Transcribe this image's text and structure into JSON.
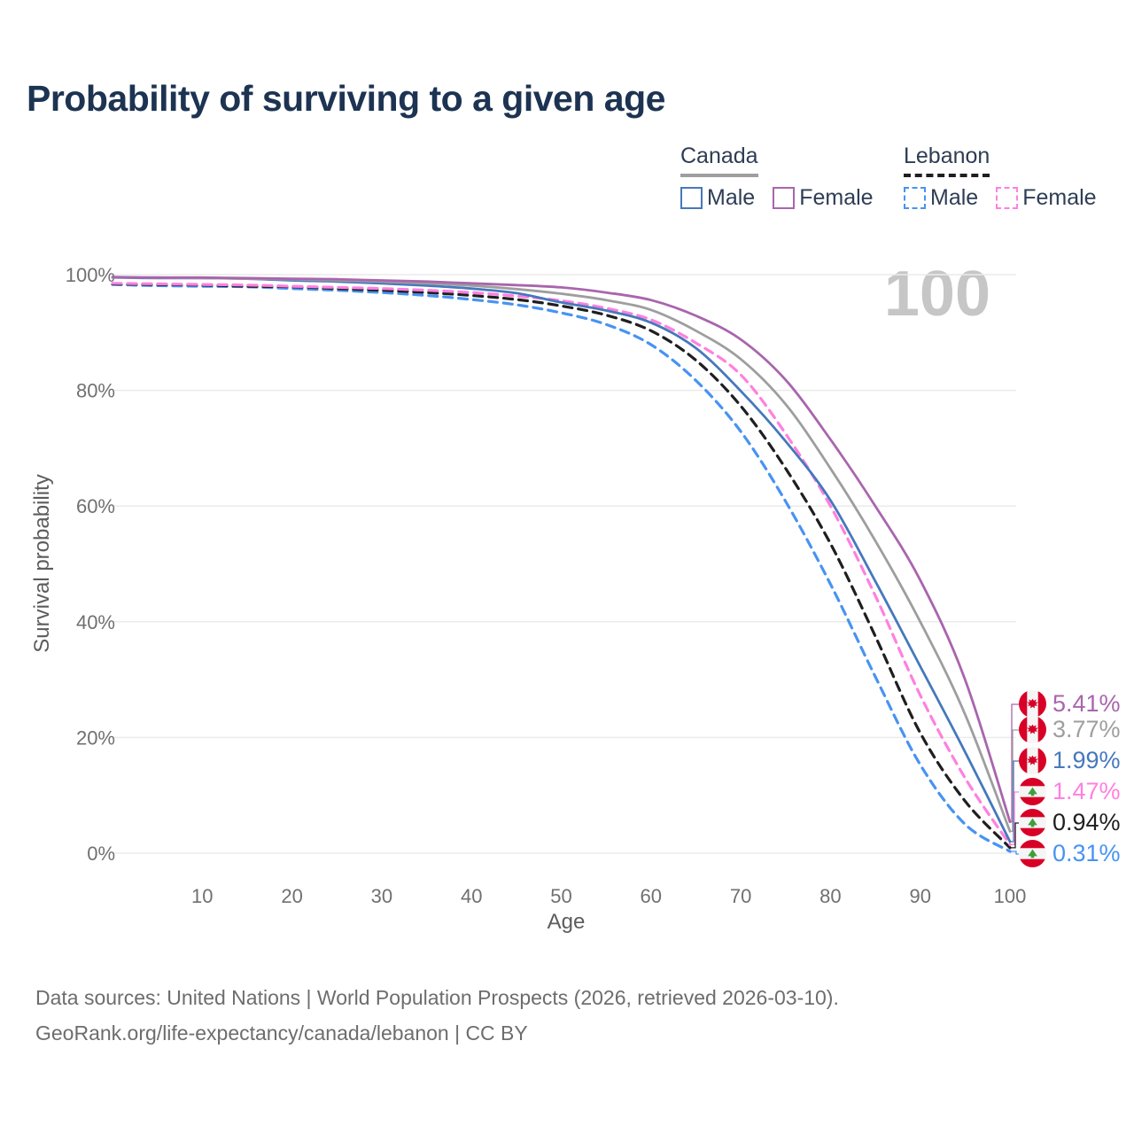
{
  "title": "Probability of surviving to a given age",
  "watermark_age": "100",
  "legend": {
    "groups": [
      {
        "name": "Canada",
        "underline_color": "#9e9e9e",
        "underline_style": "solid",
        "items": [
          {
            "label": "Male",
            "color": "#4678bd",
            "dashed": false
          },
          {
            "label": "Female",
            "color": "#a965ad",
            "dashed": false
          }
        ]
      },
      {
        "name": "Lebanon",
        "underline_color": "#1f1f1f",
        "underline_style": "dashed",
        "items": [
          {
            "label": "Male",
            "color": "#4793f2",
            "dashed": true
          },
          {
            "label": "Female",
            "color": "#ff80df",
            "dashed": true
          }
        ]
      }
    ]
  },
  "axes": {
    "y_title": "Survival probability",
    "x_title": "Age",
    "y_tick_values": [
      0,
      20,
      40,
      60,
      80,
      100
    ],
    "y_tick_labels": [
      "0%",
      "20%",
      "40%",
      "60%",
      "80%",
      "100%"
    ],
    "x_tick_values": [
      10,
      20,
      30,
      40,
      50,
      60,
      70,
      80,
      90,
      100
    ]
  },
  "chart_data": {
    "type": "line",
    "xlabel": "Age",
    "ylabel": "Survival probability",
    "xlim": [
      0,
      100
    ],
    "ylim": [
      0,
      100
    ],
    "grid": "horizontal",
    "x": [
      0,
      5,
      10,
      15,
      20,
      25,
      30,
      35,
      40,
      45,
      50,
      55,
      60,
      65,
      70,
      75,
      80,
      85,
      90,
      95,
      100
    ],
    "series": [
      {
        "name": "Canada Female",
        "country": "canada",
        "sex": "female",
        "color": "#a965ad",
        "dash": null,
        "end_label": "5.41%",
        "values": [
          99.6,
          99.5,
          99.5,
          99.4,
          99.3,
          99.2,
          99.0,
          98.8,
          98.5,
          98.2,
          97.8,
          96.9,
          95.6,
          92.9,
          88.8,
          81.8,
          71.5,
          60.0,
          47.2,
          30.0,
          5.41
        ]
      },
      {
        "name": "Canada",
        "country": "canada",
        "sex": "both",
        "color": "#9e9e9e",
        "dash": null,
        "end_label": "3.77%",
        "values": [
          99.5,
          99.5,
          99.4,
          99.3,
          99.2,
          99.0,
          98.8,
          98.5,
          98.1,
          97.5,
          96.7,
          95.6,
          93.9,
          90.3,
          85.4,
          77.6,
          66.5,
          54.0,
          40.0,
          24.0,
          3.77
        ]
      },
      {
        "name": "Canada Male",
        "country": "canada",
        "sex": "male",
        "color": "#4678bd",
        "dash": null,
        "end_label": "1.99%",
        "values": [
          99.5,
          99.4,
          99.4,
          99.3,
          99.0,
          98.8,
          98.5,
          98.1,
          97.6,
          96.8,
          95.2,
          93.8,
          91.7,
          87.3,
          79.9,
          71.2,
          61.0,
          47.0,
          32.3,
          17.5,
          1.99
        ]
      },
      {
        "name": "Lebanon Female",
        "country": "lebanon",
        "sex": "female",
        "color": "#ff80df",
        "dash": "10 7",
        "end_label": "1.47%",
        "values": [
          98.5,
          98.4,
          98.3,
          98.2,
          98.0,
          97.8,
          97.6,
          97.3,
          96.9,
          96.3,
          95.5,
          94.2,
          92.2,
          88.2,
          82.7,
          72.5,
          60.0,
          44.5,
          27.3,
          13.0,
          1.47
        ]
      },
      {
        "name": "Lebanon",
        "country": "lebanon",
        "sex": "both",
        "color": "#1f1f1f",
        "dash": "10 7",
        "end_label": "0.94%",
        "values": [
          98.4,
          98.3,
          98.2,
          98.0,
          97.9,
          97.6,
          97.3,
          96.9,
          96.4,
          95.7,
          94.6,
          93.0,
          90.3,
          85.2,
          77.3,
          66.5,
          53.5,
          37.5,
          20.8,
          9.0,
          0.94
        ]
      },
      {
        "name": "Lebanon Male",
        "country": "lebanon",
        "sex": "male",
        "color": "#4793f2",
        "dash": "10 7",
        "end_label": "0.31%",
        "values": [
          98.3,
          98.1,
          98.0,
          97.9,
          97.6,
          97.3,
          96.9,
          96.4,
          95.7,
          94.8,
          93.4,
          91.4,
          87.9,
          81.7,
          72.9,
          60.8,
          46.5,
          30.5,
          15.3,
          5.0,
          0.31
        ]
      }
    ]
  },
  "flag_colors": {
    "red": "#d80027",
    "white": "#f5f5f5",
    "cedar_green": "#3f9e3c"
  },
  "footer": {
    "line1": "Data sources: United Nations | World Population Prospects (2026, retrieved 2026-03-10).",
    "line2": "GeoRank.org/life-expectancy/canada/lebanon | CC BY"
  }
}
